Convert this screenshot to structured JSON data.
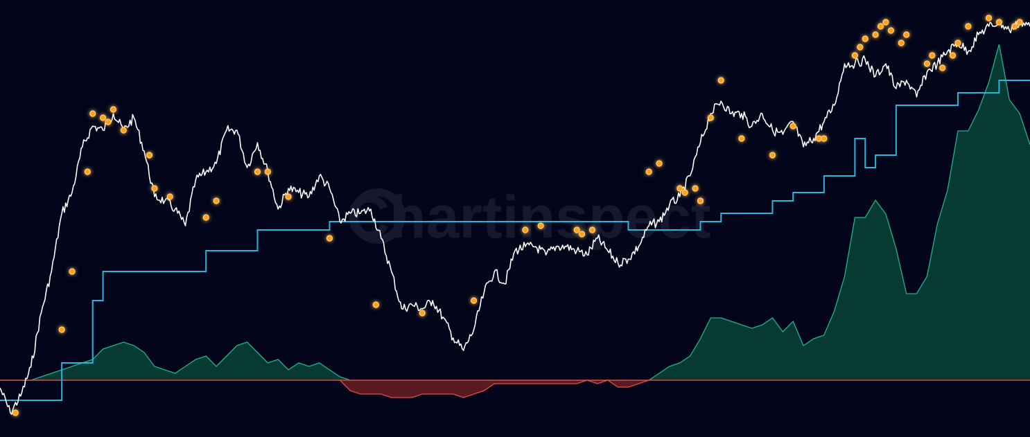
{
  "watermark": {
    "text": "Chartinspect"
  },
  "colors": {
    "background": "#03061a",
    "price": "#ffffff",
    "step": "#29b6d8",
    "positive_fill": "#063a33",
    "positive_line": "#1fb48c",
    "negative_fill": "#5a1a22",
    "negative_line": "#e84a4a",
    "zero_line": "#e84a4a",
    "marker": "#ffa01c"
  },
  "chart_data": {
    "type": "line",
    "axes_visible": false,
    "grid": false,
    "ylim": [
      0,
      1
    ],
    "series": [
      {
        "kind": "line",
        "x": [
          0,
          0.01,
          0.02,
          0.03,
          0.04,
          0.05,
          0.06,
          0.07,
          0.08,
          0.09,
          0.1,
          0.11,
          0.12,
          0.13,
          0.14,
          0.15,
          0.16,
          0.17,
          0.18,
          0.19,
          0.2,
          0.21,
          0.22,
          0.23,
          0.24,
          0.25,
          0.26,
          0.27,
          0.28,
          0.29,
          0.3,
          0.31,
          0.32,
          0.33,
          0.34,
          0.35,
          0.36,
          0.37,
          0.38,
          0.39,
          0.4,
          0.41,
          0.42,
          0.43,
          0.44,
          0.45,
          0.46,
          0.47,
          0.48,
          0.49,
          0.5,
          0.51,
          0.52,
          0.53,
          0.54,
          0.55,
          0.56,
          0.57,
          0.58,
          0.59,
          0.6,
          0.61,
          0.62,
          0.63,
          0.64,
          0.65,
          0.66,
          0.67,
          0.68,
          0.69,
          0.7,
          0.71,
          0.72,
          0.73,
          0.74,
          0.75,
          0.76,
          0.77,
          0.78,
          0.79,
          0.8,
          0.81,
          0.82,
          0.83,
          0.84,
          0.85,
          0.86,
          0.87,
          0.88,
          0.89,
          0.9,
          0.91,
          0.92,
          0.93,
          0.94,
          0.95,
          0.96,
          0.97,
          0.98,
          0.99,
          1
        ],
        "y": [
          0.1,
          0.04,
          0.08,
          0.15,
          0.28,
          0.38,
          0.52,
          0.57,
          0.68,
          0.73,
          0.72,
          0.76,
          0.72,
          0.75,
          0.67,
          0.56,
          0.55,
          0.53,
          0.49,
          0.6,
          0.62,
          0.64,
          0.72,
          0.72,
          0.63,
          0.69,
          0.62,
          0.53,
          0.58,
          0.57,
          0.56,
          0.61,
          0.58,
          0.5,
          0.52,
          0.52,
          0.53,
          0.46,
          0.38,
          0.29,
          0.3,
          0.29,
          0.31,
          0.27,
          0.22,
          0.19,
          0.24,
          0.33,
          0.38,
          0.35,
          0.43,
          0.44,
          0.44,
          0.42,
          0.44,
          0.44,
          0.43,
          0.42,
          0.46,
          0.43,
          0.4,
          0.41,
          0.44,
          0.49,
          0.5,
          0.54,
          0.56,
          0.61,
          0.69,
          0.76,
          0.79,
          0.76,
          0.76,
          0.73,
          0.76,
          0.72,
          0.71,
          0.74,
          0.68,
          0.7,
          0.74,
          0.78,
          0.88,
          0.88,
          0.89,
          0.85,
          0.88,
          0.82,
          0.84,
          0.8,
          0.86,
          0.88,
          0.91,
          0.93,
          0.91,
          0.95,
          0.97,
          0.98,
          0.96,
          0.98,
          0.97
        ]
      },
      {
        "kind": "step",
        "x": [
          0,
          0.06,
          0.06,
          0.09,
          0.09,
          0.1,
          0.1,
          0.2,
          0.2,
          0.25,
          0.25,
          0.32,
          0.32,
          0.5,
          0.5,
          0.61,
          0.61,
          0.64,
          0.64,
          0.68,
          0.68,
          0.7,
          0.7,
          0.75,
          0.75,
          0.77,
          0.77,
          0.8,
          0.8,
          0.83,
          0.83,
          0.84,
          0.84,
          0.85,
          0.85,
          0.87,
          0.87,
          0.93,
          0.93,
          0.97,
          0.97,
          1
        ],
        "y": [
          0.07,
          0.07,
          0.16,
          0.16,
          0.31,
          0.31,
          0.38,
          0.38,
          0.43,
          0.43,
          0.48,
          0.48,
          0.5,
          0.5,
          0.5,
          0.5,
          0.48,
          0.48,
          0.48,
          0.48,
          0.5,
          0.5,
          0.52,
          0.52,
          0.55,
          0.55,
          0.57,
          0.57,
          0.61,
          0.61,
          0.7,
          0.7,
          0.63,
          0.63,
          0.66,
          0.66,
          0.78,
          0.78,
          0.81,
          0.81,
          0.84,
          0.84
        ]
      },
      {
        "kind": "area",
        "x": [
          0,
          0.01,
          0.02,
          0.03,
          0.04,
          0.05,
          0.06,
          0.07,
          0.08,
          0.09,
          0.1,
          0.11,
          0.12,
          0.13,
          0.14,
          0.15,
          0.16,
          0.17,
          0.18,
          0.19,
          0.2,
          0.21,
          0.22,
          0.23,
          0.24,
          0.25,
          0.26,
          0.27,
          0.28,
          0.29,
          0.3,
          0.31,
          0.32,
          0.33,
          0.34,
          0.35,
          0.36,
          0.37,
          0.38,
          0.39,
          0.4,
          0.41,
          0.42,
          0.43,
          0.44,
          0.45,
          0.46,
          0.47,
          0.48,
          0.49,
          0.5,
          0.51,
          0.52,
          0.53,
          0.54,
          0.55,
          0.56,
          0.57,
          0.58,
          0.59,
          0.6,
          0.61,
          0.62,
          0.63,
          0.64,
          0.65,
          0.66,
          0.67,
          0.68,
          0.69,
          0.7,
          0.71,
          0.72,
          0.73,
          0.74,
          0.75,
          0.76,
          0.77,
          0.78,
          0.79,
          0.8,
          0.81,
          0.82,
          0.83,
          0.84,
          0.85,
          0.86,
          0.87,
          0.88,
          0.89,
          0.9,
          0.91,
          0.92,
          0.93,
          0.94,
          0.95,
          0.96,
          0.97,
          0.98,
          0.99,
          1
        ],
        "y": [
          0,
          0,
          0,
          0,
          0.01,
          0.02,
          0.03,
          0.04,
          0.05,
          0.06,
          0.09,
          0.1,
          0.11,
          0.1,
          0.08,
          0.04,
          0.03,
          0.02,
          0.04,
          0.06,
          0.07,
          0.04,
          0.07,
          0.1,
          0.11,
          0.08,
          0.05,
          0.06,
          0.03,
          0.05,
          0.04,
          0.05,
          0.03,
          0.01,
          -0.03,
          -0.04,
          -0.04,
          -0.04,
          -0.05,
          -0.05,
          -0.05,
          -0.04,
          -0.04,
          -0.04,
          -0.04,
          -0.05,
          -0.04,
          -0.03,
          -0.01,
          -0.01,
          -0.01,
          -0.01,
          -0.01,
          -0.01,
          -0.01,
          -0.01,
          -0.01,
          0,
          -0.01,
          0,
          -0.02,
          -0.02,
          -0.01,
          0,
          0.02,
          0.04,
          0.05,
          0.07,
          0.12,
          0.18,
          0.18,
          0.17,
          0.16,
          0.15,
          0.16,
          0.18,
          0.14,
          0.17,
          0.1,
          0.12,
          0.13,
          0.2,
          0.3,
          0.47,
          0.47,
          0.52,
          0.48,
          0.38,
          0.25,
          0.25,
          0.3,
          0.45,
          0.55,
          0.72,
          0.72,
          0.78,
          0.86,
          0.97,
          0.81,
          0.77,
          0.68
        ]
      },
      {
        "kind": "scatter",
        "x": [
          0.015,
          0.06,
          0.07,
          0.085,
          0.09,
          0.1,
          0.105,
          0.11,
          0.12,
          0.145,
          0.15,
          0.165,
          0.2,
          0.21,
          0.25,
          0.26,
          0.28,
          0.32,
          0.365,
          0.41,
          0.46,
          0.51,
          0.525,
          0.56,
          0.565,
          0.575,
          0.63,
          0.64,
          0.66,
          0.665,
          0.675,
          0.68,
          0.69,
          0.7,
          0.72,
          0.75,
          0.77,
          0.795,
          0.8,
          0.83,
          0.835,
          0.84,
          0.85,
          0.855,
          0.86,
          0.865,
          0.875,
          0.88,
          0.9,
          0.905,
          0.915,
          0.925,
          0.93,
          0.94,
          0.96,
          0.97,
          0.985,
          0.99
        ],
        "y": [
          0.04,
          0.24,
          0.38,
          0.62,
          0.76,
          0.75,
          0.74,
          0.77,
          0.72,
          0.66,
          0.58,
          0.56,
          0.51,
          0.55,
          0.62,
          0.62,
          0.56,
          0.46,
          0.3,
          0.28,
          0.31,
          0.48,
          0.49,
          0.48,
          0.47,
          0.48,
          0.62,
          0.64,
          0.58,
          0.57,
          0.58,
          0.55,
          0.75,
          0.84,
          0.7,
          0.66,
          0.73,
          0.7,
          0.7,
          0.9,
          0.92,
          0.94,
          0.95,
          0.97,
          0.98,
          0.96,
          0.93,
          0.95,
          0.88,
          0.9,
          0.87,
          0.9,
          0.93,
          0.97,
          0.99,
          0.98,
          0.97,
          0.98
        ]
      }
    ]
  }
}
